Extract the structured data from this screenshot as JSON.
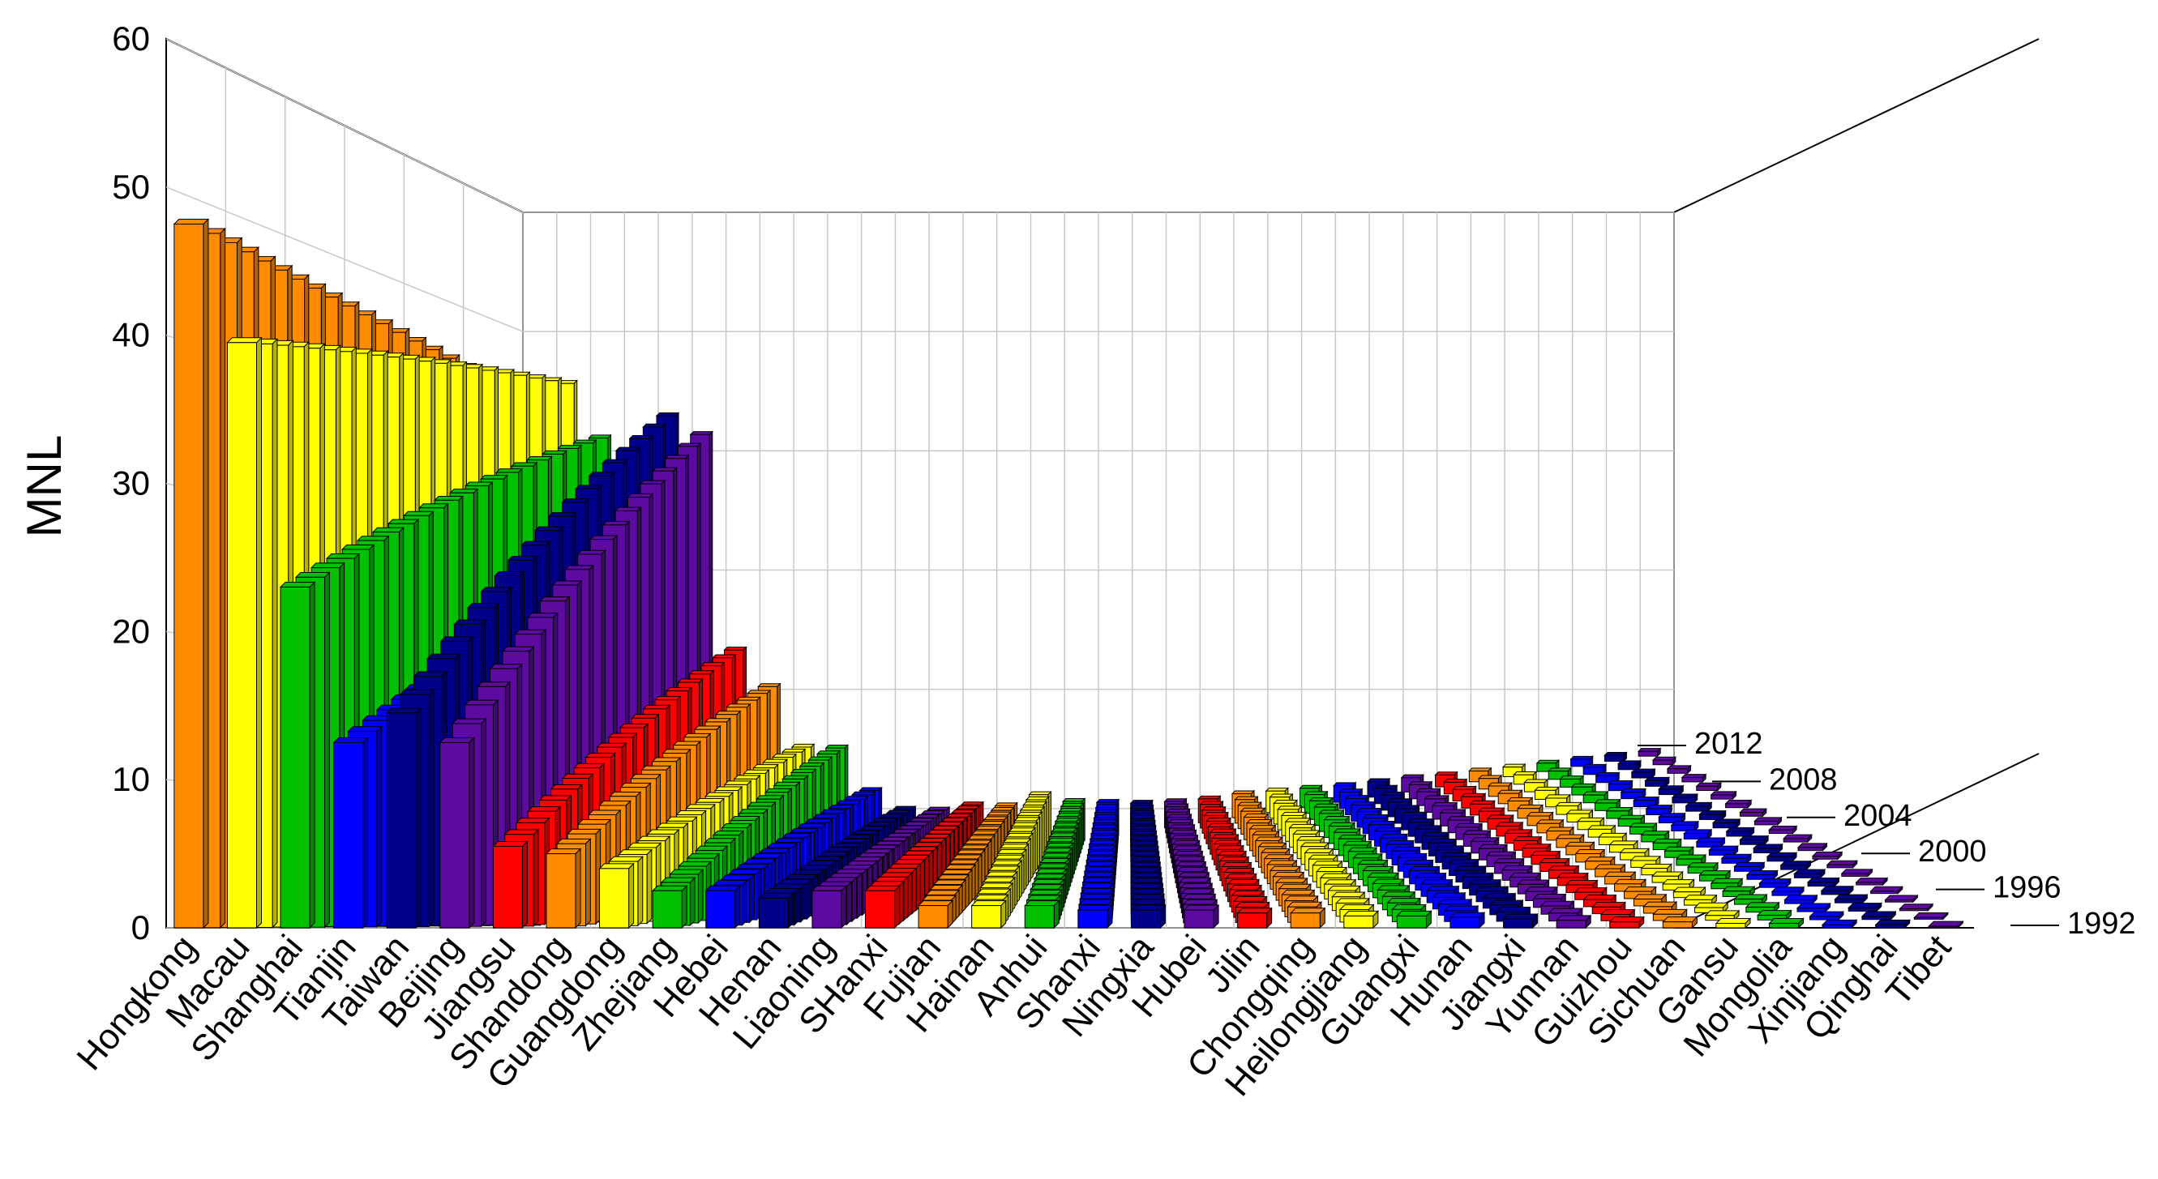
{
  "chart_data": {
    "type": "bar3d",
    "title": "",
    "ylabel": "MNL",
    "xlabel": "",
    "ylim": [
      0,
      60
    ],
    "yticks": [
      0,
      10,
      20,
      30,
      40,
      50,
      60
    ],
    "grid": true,
    "categories": [
      "Hongkong",
      "Macau",
      "Shanghai",
      "Tianjin",
      "Taiwan",
      "Beijing",
      "Jiangsu",
      "Shandong",
      "Guangdong",
      "Zhejiang",
      "Hebei",
      "Henan",
      "Liaoning",
      "SHanxi",
      "Fujian",
      "Hainan",
      "Anhui",
      "Shanxi",
      "Ningxia",
      "Hubei",
      "Jilin",
      "Chongqing",
      "Heilongjiang",
      "Guangxi",
      "Hunan",
      "Jiangxi",
      "Yunnan",
      "Guizhou",
      "Sichuan",
      "Gansu",
      "Mongolia",
      "Xinjiang",
      "Qinghai",
      "Tibet"
    ],
    "years": [
      "1992",
      "1993",
      "1994",
      "1995",
      "1996",
      "1997",
      "1998",
      "1999",
      "2000",
      "2001",
      "2002",
      "2003",
      "2004",
      "2005",
      "2006",
      "2007",
      "2008",
      "2009",
      "2010",
      "2011",
      "2012"
    ],
    "depth_tick_labels": [
      "1992",
      "1996",
      "2000",
      "2004",
      "2008",
      "2012"
    ],
    "colors": [
      "#ff8c00",
      "#ffff00",
      "#00c000",
      "#0000ff",
      "#00008b",
      "#5c0aa0",
      "#ff0000"
    ],
    "series_start_end": [
      [
        47.5,
        44.0
      ],
      [
        39.5,
        45.0
      ],
      [
        23.0,
        40.0
      ],
      [
        12.5,
        29.0
      ],
      [
        14.5,
        41.0
      ],
      [
        12.5,
        39.0
      ],
      [
        5.5,
        20.5
      ],
      [
        5.0,
        17.0
      ],
      [
        4.0,
        11.5
      ],
      [
        2.5,
        11.0
      ],
      [
        2.5,
        7.0
      ],
      [
        2.0,
        5.0
      ],
      [
        2.5,
        4.5
      ],
      [
        2.5,
        4.5
      ],
      [
        1.5,
        4.0
      ],
      [
        1.5,
        4.5
      ],
      [
        1.5,
        3.5
      ],
      [
        1.2,
        3.0
      ],
      [
        1.2,
        2.5
      ],
      [
        1.2,
        2.2
      ],
      [
        1.0,
        2.0
      ],
      [
        1.0,
        2.0
      ],
      [
        0.8,
        1.8
      ],
      [
        0.8,
        1.6
      ],
      [
        0.7,
        1.4
      ],
      [
        0.6,
        1.3
      ],
      [
        0.5,
        1.2
      ],
      [
        0.4,
        1.0
      ],
      [
        0.4,
        0.9
      ],
      [
        0.3,
        0.8
      ],
      [
        0.3,
        0.7
      ],
      [
        0.2,
        0.6
      ],
      [
        0.2,
        0.5
      ],
      [
        0.1,
        0.4
      ]
    ]
  }
}
